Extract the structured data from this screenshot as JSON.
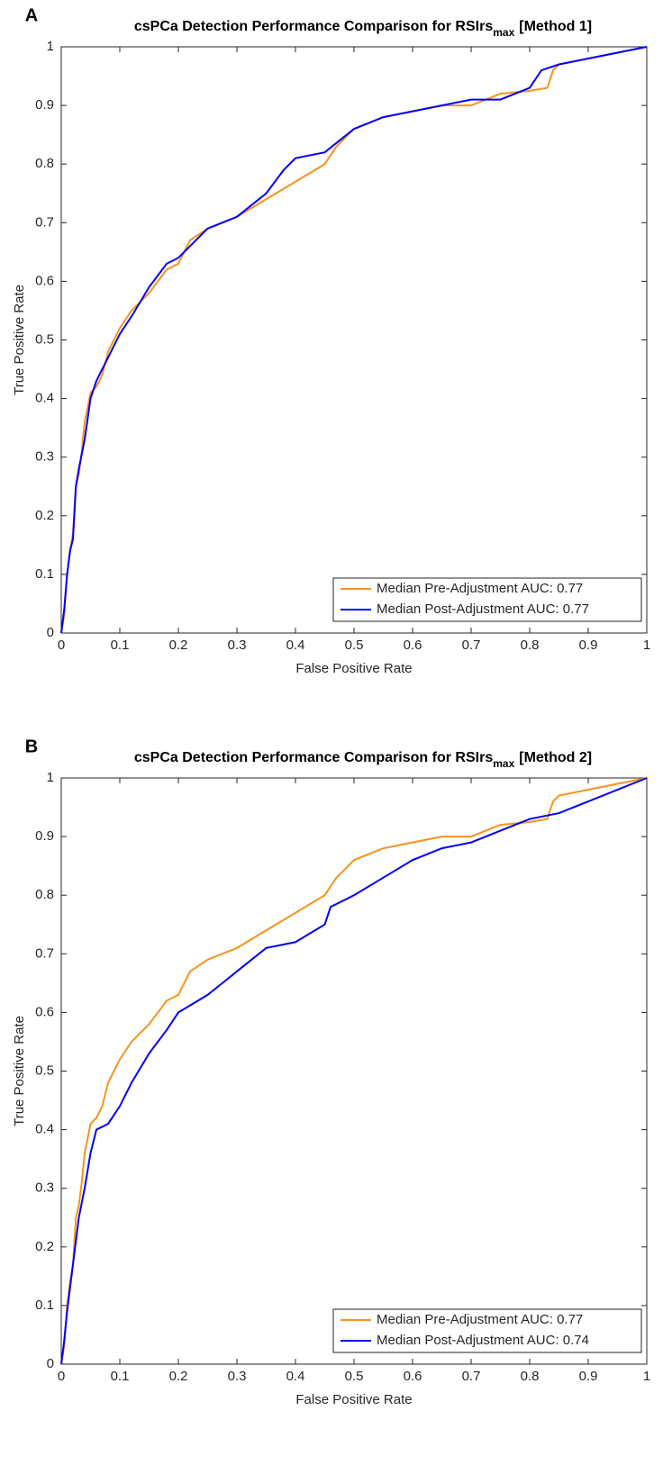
{
  "chart_data": [
    {
      "type": "line",
      "panel_label": "A",
      "title": {
        "text": "csPCa Detection Performance Comparison for RSIrs",
        "subscript": "max",
        "suffix": "[Method 1]"
      },
      "xlabel": "False Positive Rate",
      "ylabel": "True Positive Rate",
      "xlim": [
        0,
        1
      ],
      "ylim": [
        0,
        1
      ],
      "xticks": [
        0,
        0.1,
        0.2,
        0.3,
        0.4,
        0.5,
        0.6,
        0.7,
        0.8,
        0.9,
        1
      ],
      "yticks": [
        0,
        0.1,
        0.2,
        0.3,
        0.4,
        0.5,
        0.6,
        0.7,
        0.8,
        0.9,
        1
      ],
      "legend": "lower right",
      "grid": false,
      "series": [
        {
          "name": "Median Pre-Adjustment AUC: 0.77",
          "color": "#f7931e",
          "x": [
            0,
            0.005,
            0.01,
            0.015,
            0.02,
            0.025,
            0.03,
            0.035,
            0.04,
            0.05,
            0.06,
            0.07,
            0.08,
            0.1,
            0.12,
            0.15,
            0.18,
            0.2,
            0.22,
            0.25,
            0.3,
            0.35,
            0.4,
            0.45,
            0.47,
            0.5,
            0.55,
            0.6,
            0.65,
            0.7,
            0.75,
            0.8,
            0.83,
            0.84,
            0.85,
            0.9,
            0.95,
            1
          ],
          "values": [
            0,
            0.03,
            0.1,
            0.14,
            0.17,
            0.25,
            0.27,
            0.31,
            0.36,
            0.41,
            0.42,
            0.44,
            0.48,
            0.52,
            0.55,
            0.58,
            0.62,
            0.63,
            0.67,
            0.69,
            0.71,
            0.74,
            0.77,
            0.8,
            0.83,
            0.86,
            0.88,
            0.89,
            0.9,
            0.9,
            0.92,
            0.925,
            0.93,
            0.96,
            0.97,
            0.98,
            0.99,
            1
          ]
        },
        {
          "name": "Median Post-Adjustment AUC: 0.77",
          "color": "#0000ff",
          "x": [
            0,
            0.005,
            0.01,
            0.015,
            0.02,
            0.025,
            0.03,
            0.04,
            0.05,
            0.06,
            0.08,
            0.1,
            0.12,
            0.15,
            0.18,
            0.2,
            0.25,
            0.3,
            0.35,
            0.38,
            0.4,
            0.45,
            0.5,
            0.55,
            0.6,
            0.65,
            0.7,
            0.75,
            0.8,
            0.82,
            0.85,
            0.9,
            0.95,
            1
          ],
          "values": [
            0,
            0.04,
            0.1,
            0.14,
            0.16,
            0.25,
            0.28,
            0.33,
            0.4,
            0.43,
            0.47,
            0.51,
            0.54,
            0.59,
            0.63,
            0.64,
            0.69,
            0.71,
            0.75,
            0.79,
            0.81,
            0.82,
            0.86,
            0.88,
            0.89,
            0.9,
            0.91,
            0.91,
            0.93,
            0.96,
            0.97,
            0.98,
            0.99,
            1
          ]
        }
      ]
    },
    {
      "type": "line",
      "panel_label": "B",
      "title": {
        "text": "csPCa Detection Performance Comparison for RSIrs",
        "subscript": "max",
        "suffix": "[Method 2]"
      },
      "xlabel": "False Positive Rate",
      "ylabel": "True Positive Rate",
      "xlim": [
        0,
        1
      ],
      "ylim": [
        0,
        1
      ],
      "xticks": [
        0,
        0.1,
        0.2,
        0.3,
        0.4,
        0.5,
        0.6,
        0.7,
        0.8,
        0.9,
        1
      ],
      "yticks": [
        0,
        0.1,
        0.2,
        0.3,
        0.4,
        0.5,
        0.6,
        0.7,
        0.8,
        0.9,
        1
      ],
      "legend": "lower right",
      "grid": false,
      "series": [
        {
          "name": "Median Pre-Adjustment AUC: 0.77",
          "color": "#f7931e",
          "x": [
            0,
            0.005,
            0.01,
            0.015,
            0.02,
            0.025,
            0.03,
            0.035,
            0.04,
            0.05,
            0.06,
            0.07,
            0.08,
            0.1,
            0.12,
            0.15,
            0.18,
            0.2,
            0.22,
            0.25,
            0.3,
            0.35,
            0.4,
            0.45,
            0.47,
            0.5,
            0.55,
            0.6,
            0.65,
            0.7,
            0.75,
            0.8,
            0.83,
            0.84,
            0.85,
            0.9,
            0.95,
            1
          ],
          "values": [
            0,
            0.03,
            0.1,
            0.14,
            0.17,
            0.25,
            0.27,
            0.31,
            0.36,
            0.41,
            0.42,
            0.44,
            0.48,
            0.52,
            0.55,
            0.58,
            0.62,
            0.63,
            0.67,
            0.69,
            0.71,
            0.74,
            0.77,
            0.8,
            0.83,
            0.86,
            0.88,
            0.89,
            0.9,
            0.9,
            0.92,
            0.925,
            0.93,
            0.96,
            0.97,
            0.98,
            0.99,
            1
          ]
        },
        {
          "name": "Median Post-Adjustment AUC: 0.74",
          "color": "#0000ff",
          "x": [
            0,
            0.005,
            0.01,
            0.015,
            0.02,
            0.03,
            0.04,
            0.05,
            0.06,
            0.08,
            0.1,
            0.12,
            0.15,
            0.18,
            0.2,
            0.25,
            0.3,
            0.35,
            0.4,
            0.45,
            0.46,
            0.5,
            0.55,
            0.6,
            0.65,
            0.7,
            0.75,
            0.8,
            0.85,
            0.9,
            0.95,
            1
          ],
          "values": [
            0,
            0.04,
            0.09,
            0.13,
            0.17,
            0.25,
            0.3,
            0.36,
            0.4,
            0.41,
            0.44,
            0.48,
            0.53,
            0.57,
            0.6,
            0.63,
            0.67,
            0.71,
            0.72,
            0.75,
            0.78,
            0.8,
            0.83,
            0.86,
            0.88,
            0.89,
            0.91,
            0.93,
            0.94,
            0.96,
            0.98,
            1
          ]
        }
      ]
    }
  ]
}
